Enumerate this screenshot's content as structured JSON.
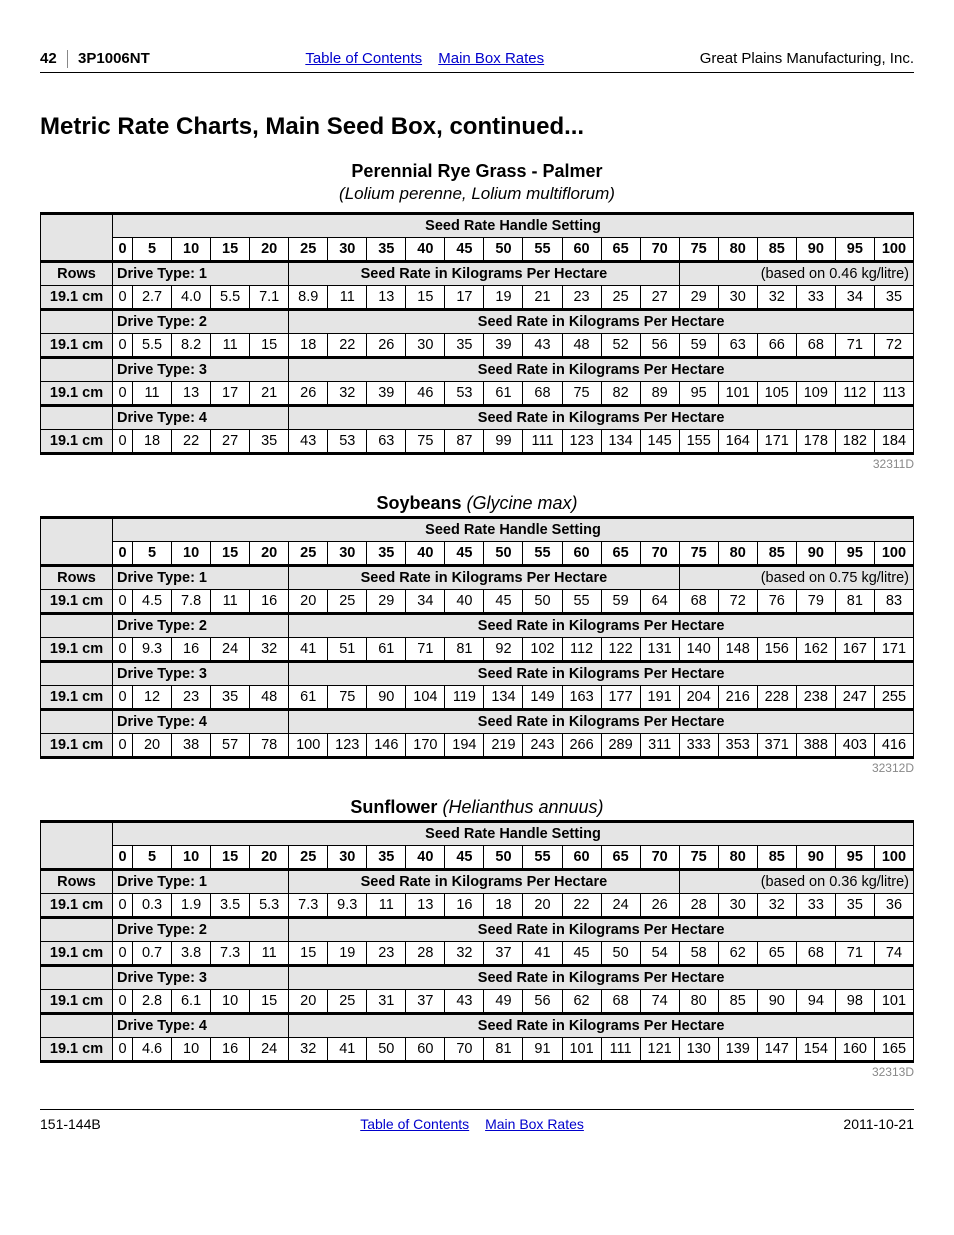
{
  "header": {
    "page_num": "42",
    "model": "3P1006NT",
    "toc": "Table of Contents",
    "main_box": "Main Box Rates",
    "company": "Great Plains Manufacturing, Inc."
  },
  "section_title": "Metric Rate Charts, Main Seed Box, continued...",
  "settings_header": "Seed Rate Handle Setting",
  "settings": [
    "0",
    "5",
    "10",
    "15",
    "20",
    "25",
    "30",
    "35",
    "40",
    "45",
    "50",
    "55",
    "60",
    "65",
    "70",
    "75",
    "80",
    "85",
    "90",
    "95",
    "100"
  ],
  "rows_label": "Rows",
  "row_spacing": "19.1 cm",
  "rate_label": "Seed Rate in Kilograms Per Hectare",
  "drive_labels": [
    "Drive Type: 1",
    "Drive Type: 2",
    "Drive Type: 3",
    "Drive Type: 4"
  ],
  "crops": [
    {
      "name": "Perennial Rye Grass - Palmer",
      "sci_sub": "(Lolium perenne, Lolium multiflorum)",
      "based": "(based on 0.46 kg/litre)",
      "fig": "32311D",
      "drives": [
        [
          "0",
          "2.7",
          "4.0",
          "5.5",
          "7.1",
          "8.9",
          "11",
          "13",
          "15",
          "17",
          "19",
          "21",
          "23",
          "25",
          "27",
          "29",
          "30",
          "32",
          "33",
          "34",
          "35"
        ],
        [
          "0",
          "5.5",
          "8.2",
          "11",
          "15",
          "18",
          "22",
          "26",
          "30",
          "35",
          "39",
          "43",
          "48",
          "52",
          "56",
          "59",
          "63",
          "66",
          "68",
          "71",
          "72"
        ],
        [
          "0",
          "11",
          "13",
          "17",
          "21",
          "26",
          "32",
          "39",
          "46",
          "53",
          "61",
          "68",
          "75",
          "82",
          "89",
          "95",
          "101",
          "105",
          "109",
          "112",
          "113"
        ],
        [
          "0",
          "18",
          "22",
          "27",
          "35",
          "43",
          "53",
          "63",
          "75",
          "87",
          "99",
          "111",
          "123",
          "134",
          "145",
          "155",
          "164",
          "171",
          "178",
          "182",
          "184"
        ]
      ]
    },
    {
      "name": "Soybeans",
      "sci_inline": "(Glycine max)",
      "based": "(based on 0.75 kg/litre)",
      "fig": "32312D",
      "drives": [
        [
          "0",
          "4.5",
          "7.8",
          "11",
          "16",
          "20",
          "25",
          "29",
          "34",
          "40",
          "45",
          "50",
          "55",
          "59",
          "64",
          "68",
          "72",
          "76",
          "79",
          "81",
          "83"
        ],
        [
          "0",
          "9.3",
          "16",
          "24",
          "32",
          "41",
          "51",
          "61",
          "71",
          "81",
          "92",
          "102",
          "112",
          "122",
          "131",
          "140",
          "148",
          "156",
          "162",
          "167",
          "171"
        ],
        [
          "0",
          "12",
          "23",
          "35",
          "48",
          "61",
          "75",
          "90",
          "104",
          "119",
          "134",
          "149",
          "163",
          "177",
          "191",
          "204",
          "216",
          "228",
          "238",
          "247",
          "255"
        ],
        [
          "0",
          "20",
          "38",
          "57",
          "78",
          "100",
          "123",
          "146",
          "170",
          "194",
          "219",
          "243",
          "266",
          "289",
          "311",
          "333",
          "353",
          "371",
          "388",
          "403",
          "416"
        ]
      ]
    },
    {
      "name": "Sunflower",
      "sci_inline": "(Helianthus annuus)",
      "based": "(based on 0.36 kg/litre)",
      "fig": "32313D",
      "drives": [
        [
          "0",
          "0.3",
          "1.9",
          "3.5",
          "5.3",
          "7.3",
          "9.3",
          "11",
          "13",
          "16",
          "18",
          "20",
          "22",
          "24",
          "26",
          "28",
          "30",
          "32",
          "33",
          "35",
          "36"
        ],
        [
          "0",
          "0.7",
          "3.8",
          "7.3",
          "11",
          "15",
          "19",
          "23",
          "28",
          "32",
          "37",
          "41",
          "45",
          "50",
          "54",
          "58",
          "62",
          "65",
          "68",
          "71",
          "74"
        ],
        [
          "0",
          "2.8",
          "6.1",
          "10",
          "15",
          "20",
          "25",
          "31",
          "37",
          "43",
          "49",
          "56",
          "62",
          "68",
          "74",
          "80",
          "85",
          "90",
          "94",
          "98",
          "101"
        ],
        [
          "0",
          "4.6",
          "10",
          "16",
          "24",
          "32",
          "41",
          "50",
          "60",
          "70",
          "81",
          "91",
          "101",
          "111",
          "121",
          "130",
          "139",
          "147",
          "154",
          "160",
          "165"
        ]
      ]
    }
  ],
  "footer": {
    "left": "151-144B",
    "toc": "Table of Contents",
    "main_box": "Main Box Rates",
    "date": "2011-10-21"
  }
}
